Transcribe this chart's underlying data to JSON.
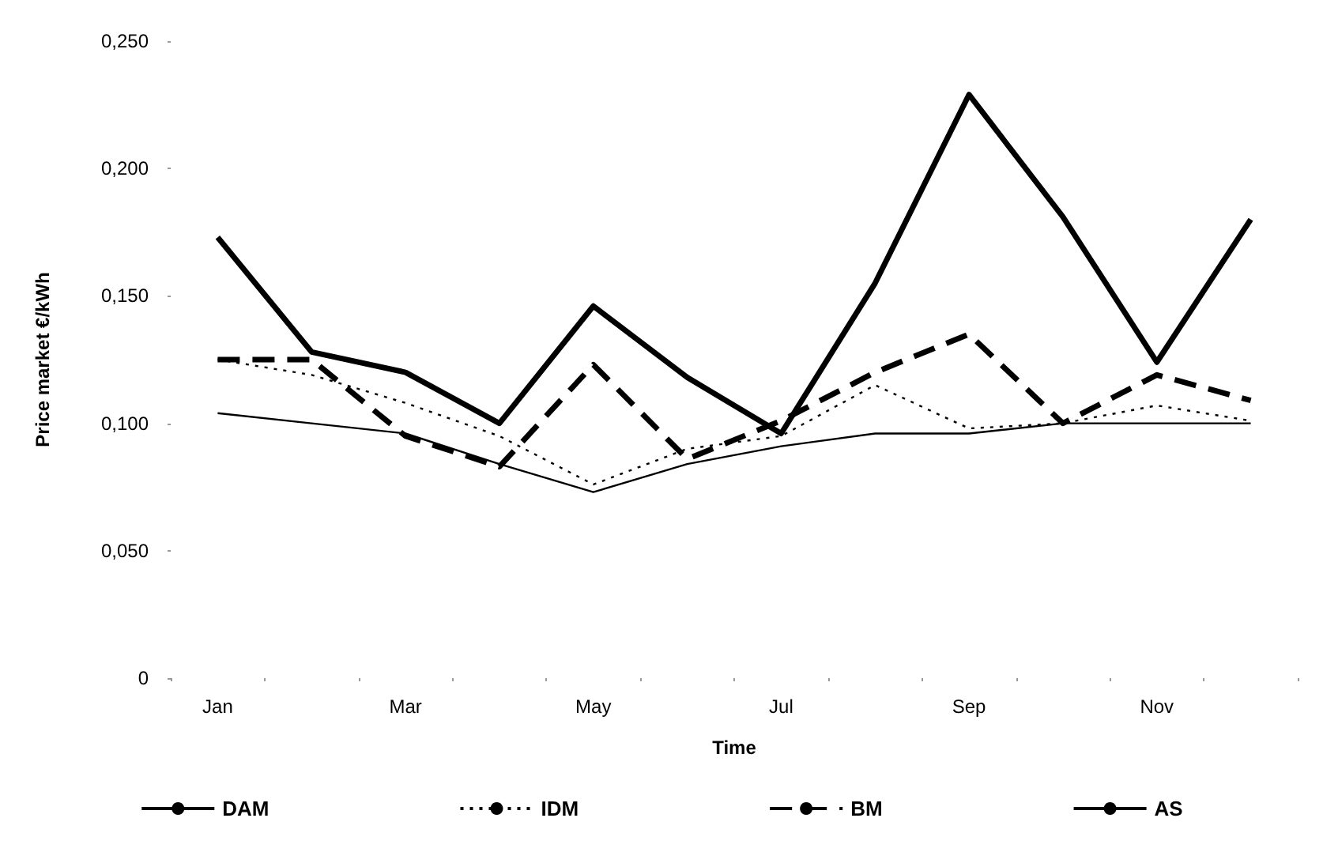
{
  "chart_data": {
    "type": "line",
    "xlabel": "Time",
    "ylabel": "Price market €/kWh",
    "categories": [
      "Jan",
      null,
      "Mar",
      null,
      "May",
      null,
      "Jul",
      null,
      "Sep",
      null,
      "Nov",
      null
    ],
    "series": [
      {
        "name": "DAM",
        "color": "#000000",
        "line_style": "solid",
        "values": [
          0.104,
          0.1,
          0.096,
          0.084,
          0.073,
          0.084,
          0.091,
          0.096,
          0.096,
          0.1,
          0.1,
          0.1
        ]
      },
      {
        "name": "IDM",
        "color": "#000000",
        "line_style": "dotted",
        "values": [
          0.125,
          0.119,
          0.108,
          0.095,
          0.076,
          0.09,
          0.095,
          0.115,
          0.098,
          0.1,
          0.107,
          0.101
        ]
      },
      {
        "name": "BM",
        "color": "#000000",
        "line_style": "dashed",
        "values": [
          0.125,
          0.125,
          0.095,
          0.083,
          0.123,
          0.086,
          0.101,
          0.12,
          0.135,
          0.1,
          0.119,
          0.109
        ]
      },
      {
        "name": "AS",
        "color": "#000000",
        "line_style": "solid",
        "values": [
          0.173,
          0.128,
          0.12,
          0.1,
          0.146,
          0.118,
          0.096,
          0.155,
          0.229,
          0.181,
          0.124,
          0.18
        ]
      }
    ],
    "ylim": [
      0,
      0.25
    ],
    "yticks": [
      {
        "value": 0,
        "label": "0"
      },
      {
        "value": 0.05,
        "label": "0,050"
      },
      {
        "value": 0.1,
        "label": "0,100"
      },
      {
        "value": 0.15,
        "label": "0,150"
      },
      {
        "value": 0.2,
        "label": "0,200"
      },
      {
        "value": 0.25,
        "label": "0,250"
      }
    ],
    "grid": false,
    "legend": "bottom",
    "marker": "none"
  }
}
